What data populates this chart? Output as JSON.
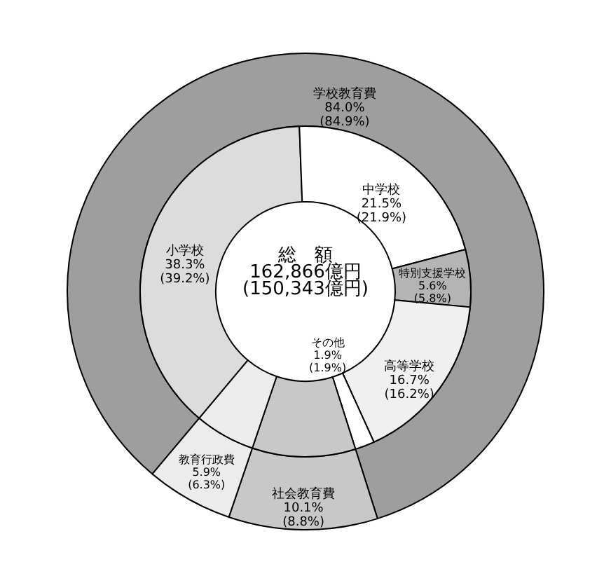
{
  "chart_data": [
    {
      "type": "donut",
      "categories": [
        "学校教育費",
        "社会教育費",
        "教育行政費"
      ],
      "values": [
        84.0,
        10.1,
        5.9
      ],
      "colors": [
        "#9e9e9e",
        "#c8c8c8",
        "#ececec"
      ],
      "value_labels": [
        "84.0% (84.9%)",
        "10.1% (8.8%)",
        "5.9% (6.3%)"
      ]
    },
    {
      "type": "donut",
      "categories": [
        "小学校",
        "中学校",
        "特別支援学校",
        "高等学校",
        "その他",
        null,
        null
      ],
      "values": [
        38.3,
        21.5,
        5.6,
        16.7,
        1.9,
        10.1,
        5.9
      ],
      "colors": [
        "#dcdcdc",
        "#ffffff",
        "#b4b4b4",
        "#f0f0f0",
        "#ffffff",
        "#c8c8c8",
        "#ececec"
      ],
      "value_labels": [
        "38.3% (39.2%)",
        "21.5% (21.9%)",
        "5.6% (5.8%)",
        "16.7% (16.2%)",
        "1.9% (1.9%)",
        null,
        null
      ],
      "annotations": [
        "総　額",
        "162,866億円",
        "(150,343億円)"
      ]
    }
  ]
}
